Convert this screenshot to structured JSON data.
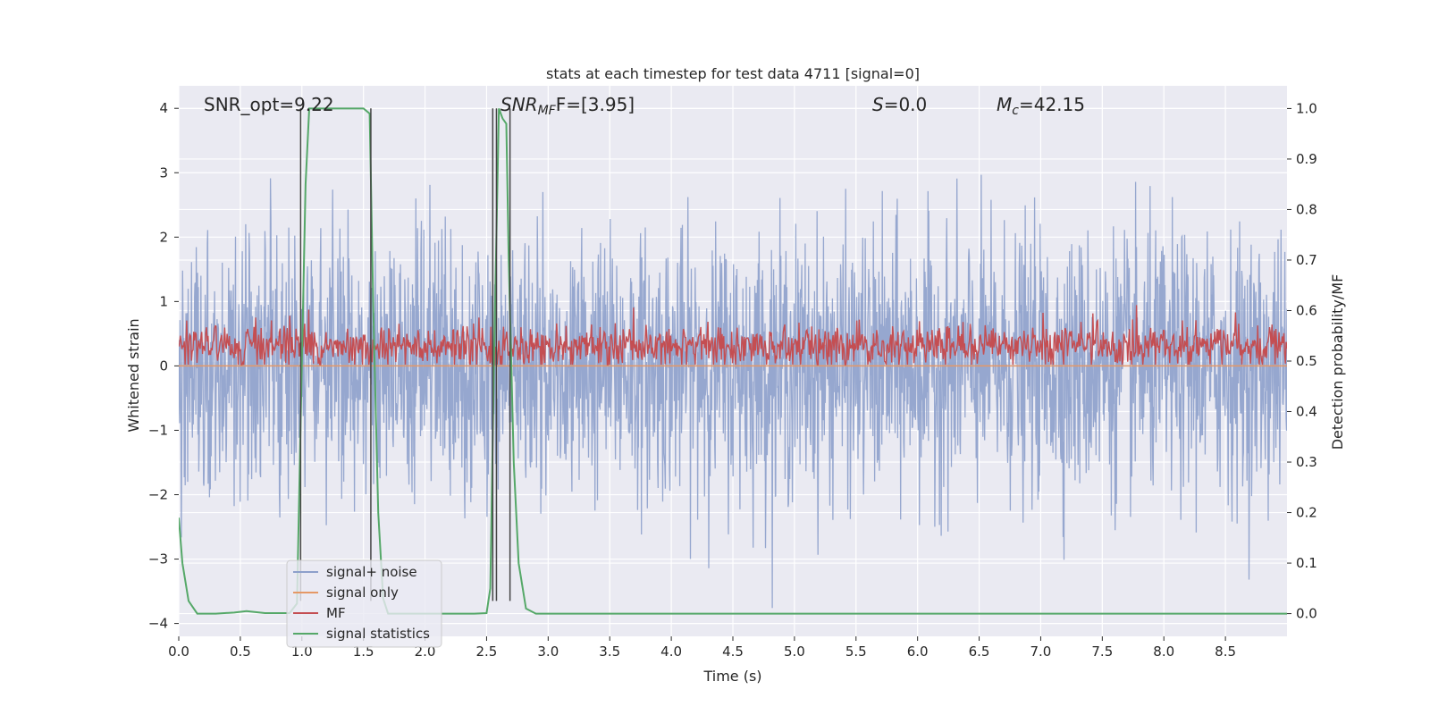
{
  "chart_data": {
    "type": "line",
    "title": "stats at each timestep for test data 4711 [signal=0]",
    "xlabel": "Time (s)",
    "ylabel_left": "Whitened strain",
    "ylabel_right": "Detection probability/MF",
    "xlim": [
      0.0,
      9.0
    ],
    "ylim_left": [
      -4.2,
      4.35
    ],
    "ylim_right": [
      -0.045,
      1.045
    ],
    "xticks": [
      "0.0",
      "0.5",
      "1.0",
      "1.5",
      "2.0",
      "2.5",
      "3.0",
      "3.5",
      "4.0",
      "4.5",
      "5.0",
      "5.5",
      "6.0",
      "6.5",
      "7.0",
      "7.5",
      "8.0",
      "8.5"
    ],
    "yticks_left": [
      "−4",
      "−3",
      "−2",
      "−1",
      "0",
      "1",
      "2",
      "3",
      "4"
    ],
    "yticks_right": [
      "0.0",
      "0.1",
      "0.2",
      "0.3",
      "0.4",
      "0.5",
      "0.6",
      "0.7",
      "0.8",
      "0.9",
      "1.0"
    ],
    "grid": true,
    "annotations": {
      "snr_opt": "SNR_opt=9.22",
      "snr_mf_base": "SNR",
      "snr_mf_sub": "MF",
      "snr_mf_value": "F=[3.95]",
      "s_label": "S",
      "s_value": "=0.0",
      "mc_base": "M",
      "mc_sub": "c",
      "mc_value": "=42.15"
    },
    "legend": {
      "placement": "lower-left",
      "entries": [
        "signal+ noise",
        "signal only",
        "MF",
        "signal statistics"
      ]
    },
    "series": [
      {
        "name": "signal+ noise",
        "color": "#8da0cb",
        "axis": "left",
        "description_stats": {
          "typical_low": -1.5,
          "typical_high": 1.5,
          "min": -3.8,
          "max": 3.55
        }
      },
      {
        "name": "signal only",
        "color": "#e59866",
        "axis": "left",
        "values_constant": 0.0
      },
      {
        "name": "MF",
        "color": "#c44e52",
        "axis": "left",
        "description_stats": {
          "baseline": 0.02,
          "typical_high": 0.55,
          "max": 1.0
        }
      },
      {
        "name": "signal statistics",
        "color": "#55a868",
        "axis": "right",
        "x": [
          0.0,
          0.03,
          0.08,
          0.15,
          0.3,
          0.45,
          0.55,
          0.7,
          0.9,
          0.96,
          1.0,
          1.03,
          1.06,
          1.1,
          1.3,
          1.5,
          1.55,
          1.58,
          1.62,
          1.66,
          1.7,
          2.0,
          2.4,
          2.5,
          2.53,
          2.56,
          2.6,
          2.63,
          2.66,
          2.68,
          2.72,
          2.76,
          2.82,
          2.9,
          3.2,
          4.0,
          5.0,
          6.0,
          7.0,
          8.0,
          9.0
        ],
        "y": [
          0.19,
          0.1,
          0.025,
          0.0,
          0.0,
          0.002,
          0.005,
          0.001,
          0.001,
          0.02,
          0.5,
          0.85,
          1.0,
          1.0,
          1.0,
          1.0,
          0.99,
          0.6,
          0.2,
          0.03,
          0.0,
          0.0,
          0.0,
          0.001,
          0.05,
          0.5,
          1.0,
          0.98,
          0.97,
          0.7,
          0.3,
          0.1,
          0.01,
          0.0,
          0.0,
          0.0,
          0.0,
          0.0,
          0.0,
          0.0,
          0.0
        ]
      }
    ],
    "vertical_lines_x": [
      0.99,
      1.56,
      2.55,
      2.58,
      2.69
    ],
    "vertical_lines_range_left": [
      -3.65,
      4.0
    ],
    "colors": {
      "background": "#eaeaf2",
      "grid": "#ffffff",
      "vline": "#444444"
    }
  }
}
